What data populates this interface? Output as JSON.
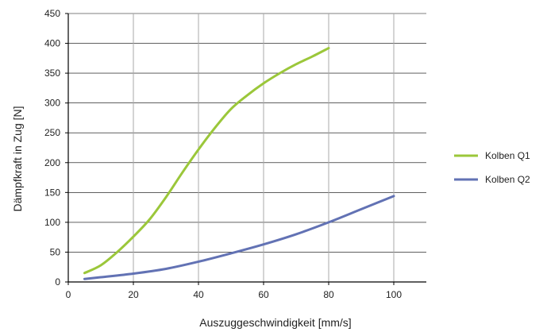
{
  "chart_data": {
    "type": "line",
    "title": "",
    "xlabel": "Auszuggeschwindigkeit [mm/s]",
    "ylabel": "Dämpfkraft in Zug [N]",
    "xlim": [
      0,
      110
    ],
    "ylim": [
      0,
      450
    ],
    "xticks": [
      0,
      20,
      40,
      60,
      80,
      100
    ],
    "yticks": [
      0,
      50,
      100,
      150,
      200,
      250,
      300,
      350,
      400,
      450
    ],
    "grid": true,
    "legend_position": "right",
    "series": [
      {
        "name": "Kolben Q1",
        "color": "#9bc73a",
        "x": [
          5,
          10,
          15,
          20,
          25,
          30,
          35,
          40,
          45,
          50,
          55,
          60,
          65,
          70,
          75,
          80
        ],
        "y": [
          15,
          28,
          50,
          76,
          105,
          142,
          183,
          222,
          258,
          290,
          313,
          333,
          350,
          365,
          378,
          392
        ]
      },
      {
        "name": "Kolben Q2",
        "color": "#6272b4",
        "x": [
          5,
          10,
          20,
          30,
          40,
          50,
          60,
          70,
          80,
          90,
          100
        ],
        "y": [
          5,
          8,
          14,
          22,
          34,
          48,
          63,
          80,
          100,
          122,
          144
        ]
      }
    ]
  }
}
